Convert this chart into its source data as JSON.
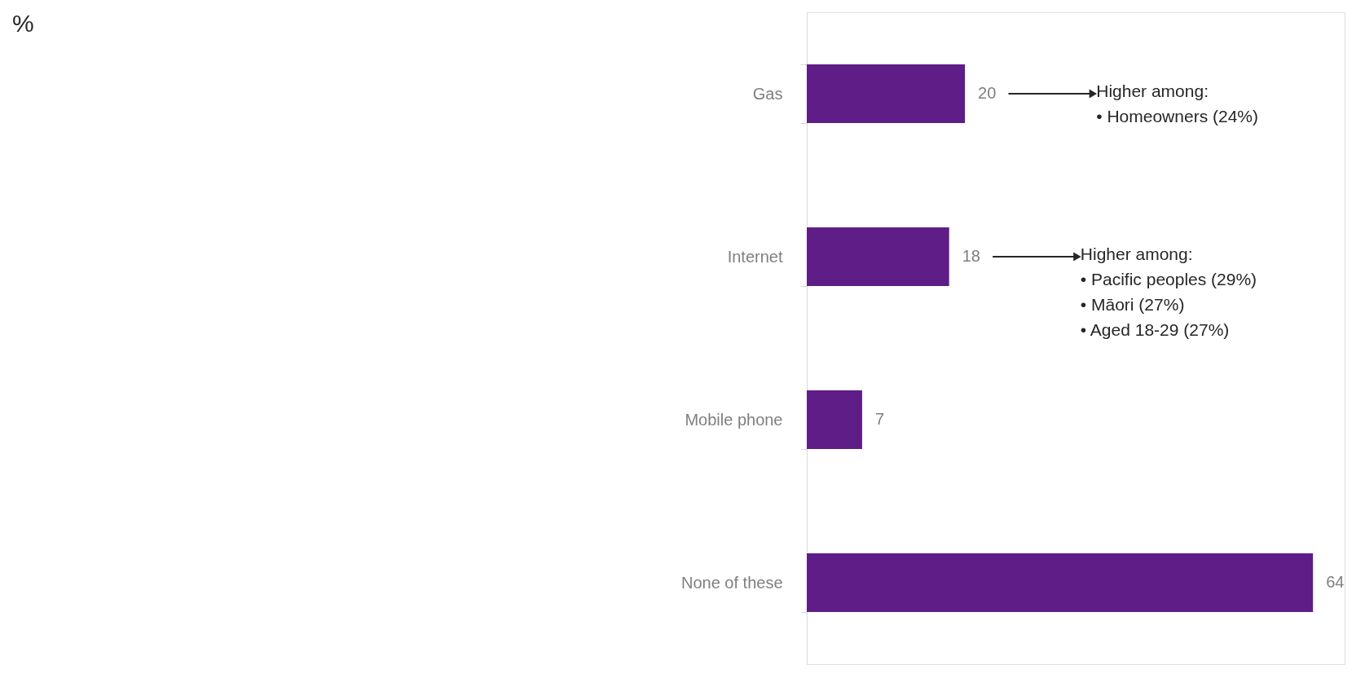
{
  "chart_data": {
    "type": "bar",
    "orientation": "horizontal",
    "title": "%",
    "categories": [
      "Gas",
      "Internet",
      "Mobile phone",
      "None of these"
    ],
    "values": [
      20,
      18,
      7,
      64
    ],
    "color": "#5f1e87",
    "data_labels": true,
    "xlim": [
      0,
      68
    ],
    "grid": false,
    "annotations": [
      "Higher among:\n• Homeowners (24%)",
      "Higher among:\n• Pacific peoples (29%)\n• Māori (27%)\n• Aged 18-29 (27%)"
    ]
  }
}
